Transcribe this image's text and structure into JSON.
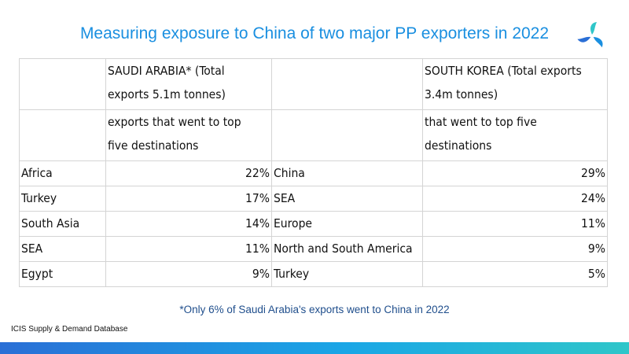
{
  "title": "Measuring exposure to China of two major PP exporters in 2022",
  "logo_icon": "icis-logo-icon",
  "table": {
    "header_row1": [
      "",
      "SAUDI ARABIA* (Total\nexports 5.1m tonnes)",
      "",
      "SOUTH KOREA (Total exports\n3.4m tonnes)"
    ],
    "header_row2": [
      "",
      "exports that went to top\nfive destinations",
      "",
      "that went to top five\ndestinations"
    ],
    "rows": [
      [
        "Africa",
        "22%",
        "China",
        "29%"
      ],
      [
        "Turkey",
        "17%",
        "SEA",
        "24%"
      ],
      [
        "South Asia",
        "14%",
        "Europe",
        "11%"
      ],
      [
        "SEA",
        "11%",
        "North and South America",
        "9%"
      ],
      [
        "Egypt",
        "9%",
        "Turkey",
        "5%"
      ]
    ]
  },
  "footnote": "*Only 6% of Saudi Arabia's exports went to China in 2022",
  "source": "ICIS Supply & Demand Database",
  "colors": {
    "title": "#1a8fe0",
    "footnote": "#1f4e8c",
    "bar_start": "#2a6fd6",
    "bar_end": "#2fc6c9",
    "grid": "#d4d4d4"
  }
}
